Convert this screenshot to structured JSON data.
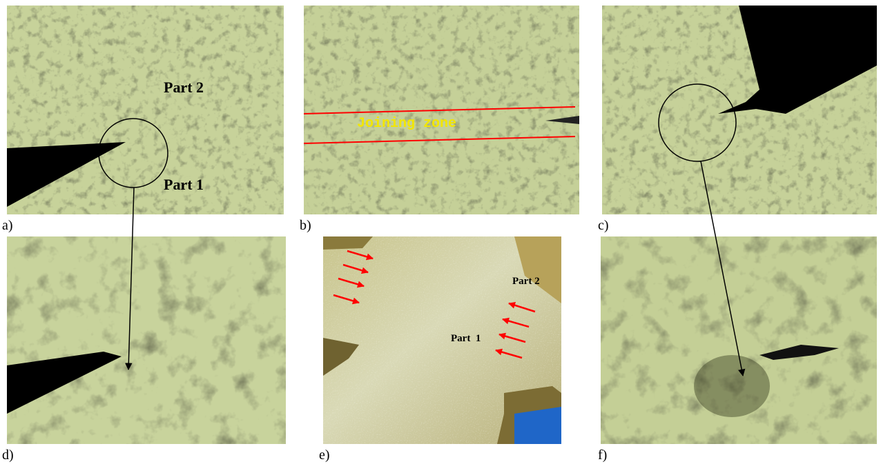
{
  "panels": [
    {
      "label": "a)",
      "texts": [
        "Part 2",
        "Part 1"
      ]
    },
    {
      "label": "b)",
      "texts": [
        "Joining zone"
      ]
    },
    {
      "label": "c)",
      "texts": []
    },
    {
      "label": "d)",
      "texts": []
    },
    {
      "label": "e)",
      "texts": [
        "Part 2",
        "Part  1"
      ]
    },
    {
      "label": "f)",
      "texts": []
    }
  ]
}
